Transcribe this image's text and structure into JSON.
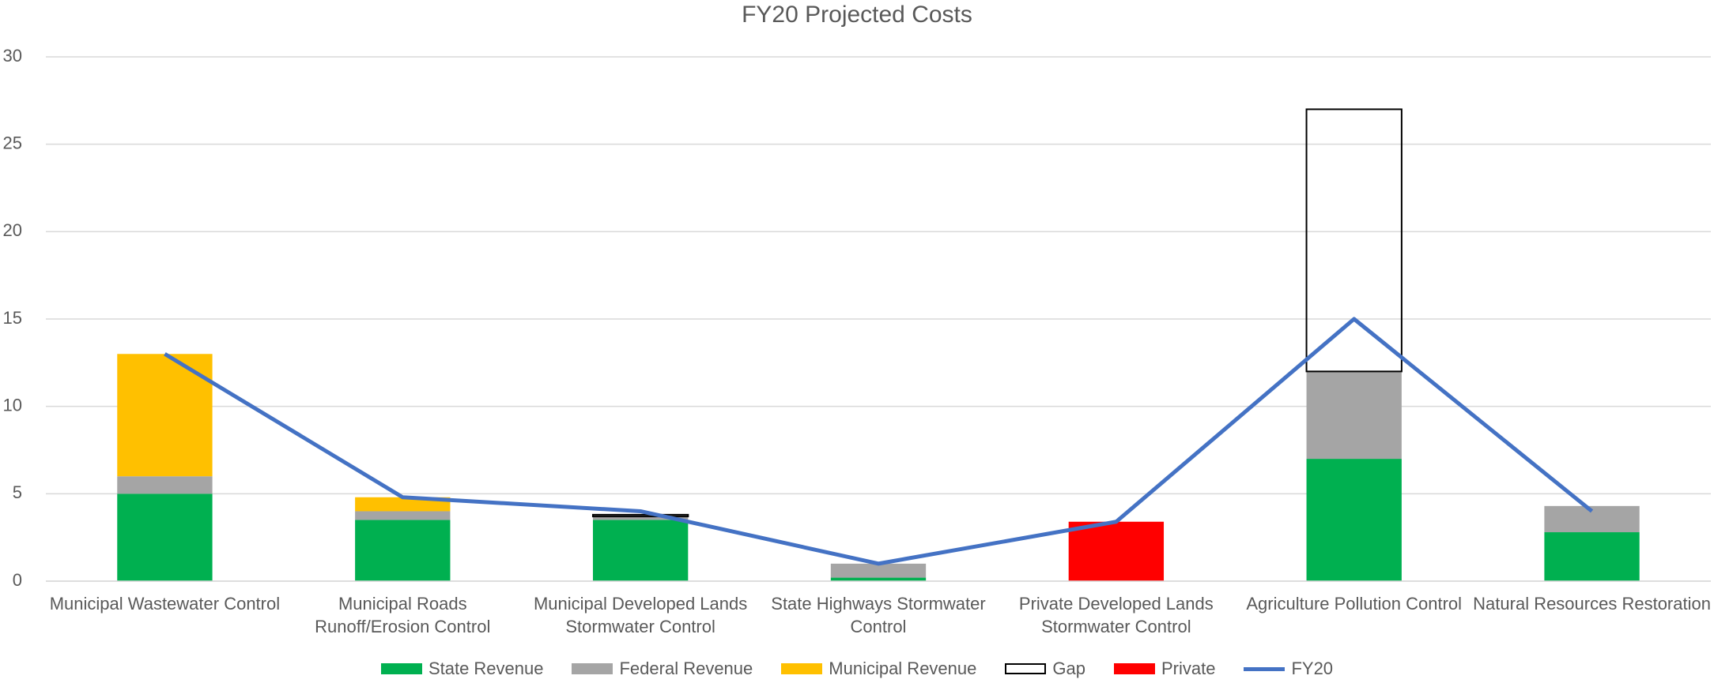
{
  "chart_data": {
    "type": "bar",
    "stacked": true,
    "title": "FY20 Projected Costs",
    "categories": [
      "Municipal Wastewater Control",
      "Municipal Roads Runoff/Erosion Control",
      "Municipal Developed Lands Stormwater Control",
      "State Highways Stormwater Control",
      "Private Developed Lands Stormwater Control",
      "Agriculture Pollution Control",
      "Natural Resources Restoration"
    ],
    "series": [
      {
        "name": "State Revenue",
        "color": "#00b050",
        "values": [
          5,
          3.5,
          3.5,
          0.2,
          0,
          7,
          2.8
        ]
      },
      {
        "name": "Federal Revenue",
        "color": "#a5a5a5",
        "values": [
          1,
          0.5,
          0.2,
          0.8,
          0,
          5,
          1.5
        ]
      },
      {
        "name": "Municipal Revenue",
        "color": "#ffc000",
        "values": [
          7,
          0.8,
          0,
          0,
          0,
          0,
          0
        ]
      },
      {
        "name": "Gap",
        "color": "#000000",
        "outline": true,
        "values": [
          0,
          0,
          0.1,
          0,
          0,
          15,
          0
        ]
      },
      {
        "name": "Private",
        "color": "#ff0000",
        "values": [
          0,
          0,
          0,
          0,
          3.4,
          0,
          0
        ]
      },
      {
        "name": "FY20",
        "color": "#4472c4",
        "type": "line",
        "values": [
          13,
          4.8,
          4,
          1,
          3.4,
          15,
          4
        ]
      }
    ],
    "ylim": [
      0,
      30
    ],
    "yticks": [
      0,
      5,
      10,
      15,
      20,
      25,
      30
    ],
    "grid": true,
    "legend": "bottom"
  }
}
